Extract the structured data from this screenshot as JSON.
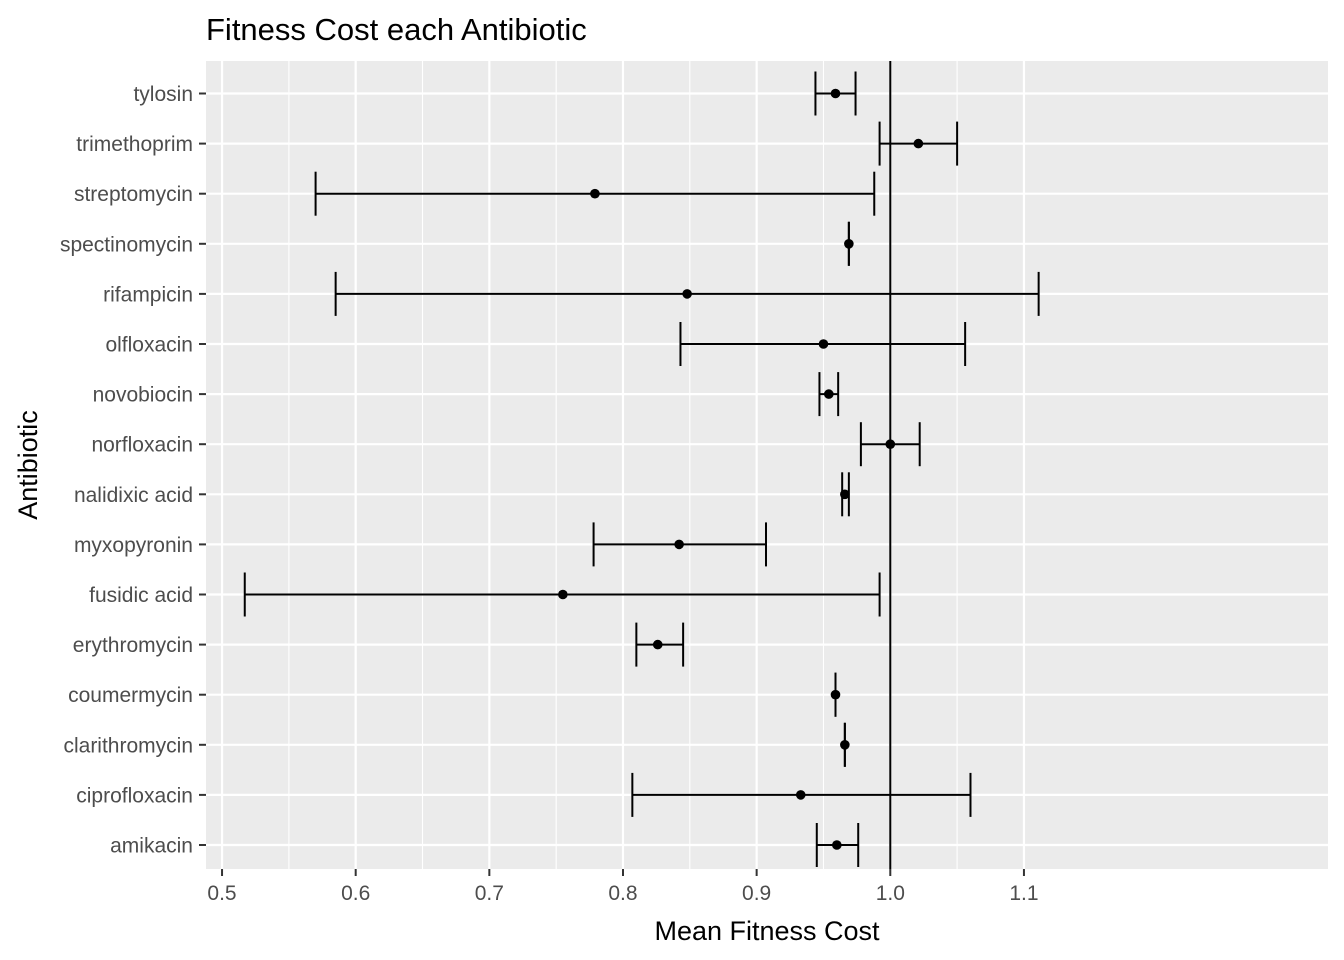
{
  "chart_data": {
    "type": "errorbar",
    "title": "Fitness Cost each Antibiotic",
    "xlabel": "Mean Fitness Cost",
    "ylabel": "Antibiotic",
    "xlim": [
      0.488,
      1.3275
    ],
    "x_ticks": [
      0.5,
      0.6,
      0.7,
      0.8,
      0.9,
      1.0,
      1.1
    ],
    "x_tick_labels": [
      "0.5",
      "0.6",
      "0.7",
      "0.8",
      "0.9",
      "1.0",
      "1.1"
    ],
    "reference_line_x": 1.0,
    "grid": true,
    "panel_background": "#ebebeb",
    "grid_color": "#ffffff",
    "mark_color": "#000000",
    "categories": [
      "tylosin",
      "trimethoprim",
      "streptomycin",
      "spectinomycin",
      "rifampicin",
      "olfloxacin",
      "novobiocin",
      "norfloxacin",
      "nalidixic acid",
      "myxopyronin",
      "fusidic acid",
      "erythromycin",
      "coumermycin",
      "clarithromycin",
      "ciprofloxacin",
      "amikacin"
    ],
    "mean": [
      0.959,
      1.021,
      0.779,
      0.969,
      0.848,
      0.95,
      0.954,
      1.0,
      0.966,
      0.842,
      0.755,
      0.826,
      0.959,
      0.966,
      0.933,
      0.96
    ],
    "lower": [
      0.944,
      0.992,
      0.57,
      0.969,
      0.585,
      0.843,
      0.947,
      0.978,
      0.964,
      0.778,
      0.517,
      0.81,
      0.959,
      0.966,
      0.807,
      0.945
    ],
    "upper": [
      0.974,
      1.05,
      0.988,
      0.969,
      1.111,
      1.056,
      0.961,
      1.022,
      0.969,
      0.907,
      0.992,
      0.845,
      0.959,
      0.966,
      1.06,
      0.976
    ]
  }
}
